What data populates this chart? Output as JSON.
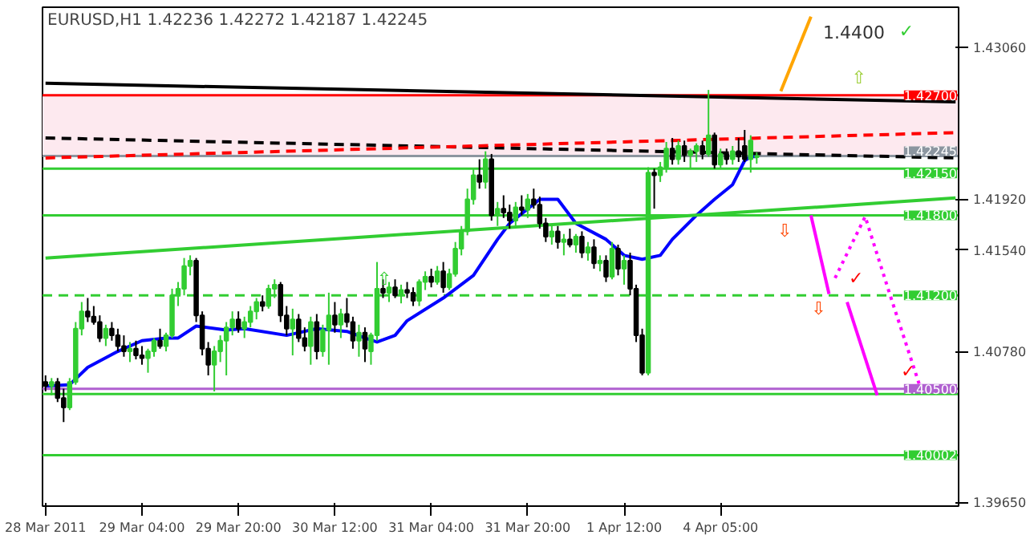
{
  "chart_data": {
    "type": "candlestick",
    "title": "EURUSD,H1  1.42236 1.42272 1.42187 1.42245",
    "categories": [
      "28 Mar 2011",
      null,
      null,
      null,
      null,
      null,
      null,
      null,
      null,
      null,
      null,
      null,
      null,
      null,
      null,
      null,
      "29 Mar 04:00",
      null,
      null,
      null,
      null,
      null,
      null,
      null,
      null,
      null,
      null,
      null,
      null,
      null,
      null,
      null,
      "29 Mar 20:00",
      null,
      null,
      null,
      null,
      null,
      null,
      null,
      null,
      null,
      null,
      null,
      null,
      null,
      null,
      null,
      "30 Mar 12:00",
      null,
      null,
      null,
      null,
      null,
      null,
      null,
      null,
      null,
      null,
      null,
      null,
      null,
      null,
      null,
      "31 Mar 04:00",
      null,
      null,
      null,
      null,
      null,
      null,
      null,
      null,
      null,
      null,
      null,
      null,
      null,
      null,
      null,
      "31 Mar 20:00",
      null,
      null,
      null,
      null,
      null,
      null,
      null,
      null,
      null,
      null,
      null,
      null,
      null,
      null,
      null,
      "1 Apr 12:00",
      null,
      null,
      null,
      null,
      null,
      null,
      null,
      null,
      null,
      null,
      null,
      null,
      null,
      null,
      null,
      "4 Apr 05:00",
      null,
      null,
      null,
      null,
      null,
      null,
      null,
      null,
      null,
      null,
      null,
      null,
      null,
      null,
      null,
      null,
      null,
      null,
      null,
      null,
      null,
      null,
      null,
      null,
      null,
      null,
      null,
      null,
      null,
      null,
      null,
      null,
      null,
      null,
      null,
      null,
      null,
      null,
      null
    ],
    "ohlc": [
      [
        1.4055,
        1.406,
        1.4048,
        1.4052
      ],
      [
        1.4052,
        1.4058,
        1.4045,
        1.4055
      ],
      [
        1.4055,
        1.4058,
        1.404,
        1.4043
      ],
      [
        1.4043,
        1.405,
        1.4025,
        1.4036
      ],
      [
        1.4036,
        1.4058,
        1.4034,
        1.4055
      ],
      [
        1.4055,
        1.41,
        1.4053,
        1.4095
      ],
      [
        1.4095,
        1.4115,
        1.409,
        1.4108
      ],
      [
        1.4108,
        1.4118,
        1.41,
        1.4104
      ],
      [
        1.4104,
        1.4112,
        1.4098,
        1.41
      ],
      [
        1.41,
        1.4105,
        1.4085,
        1.4088
      ],
      [
        1.4088,
        1.4098,
        1.4082,
        1.4095
      ],
      [
        1.4095,
        1.41,
        1.4086,
        1.409
      ],
      [
        1.409,
        1.4095,
        1.4078,
        1.4082
      ],
      [
        1.4082,
        1.409,
        1.4074,
        1.4078
      ],
      [
        1.4078,
        1.4085,
        1.407,
        1.408
      ],
      [
        1.408,
        1.4086,
        1.4072,
        1.4075
      ],
      [
        1.4075,
        1.4082,
        1.4068,
        1.4073
      ],
      [
        1.4073,
        1.408,
        1.4062,
        1.4078
      ],
      [
        1.4078,
        1.4088,
        1.4074,
        1.4086
      ],
      [
        1.4086,
        1.4095,
        1.408,
        1.4082
      ],
      [
        1.4082,
        1.4092,
        1.4078,
        1.409
      ],
      [
        1.409,
        1.4125,
        1.4088,
        1.412
      ],
      [
        1.412,
        1.413,
        1.4112,
        1.4125
      ],
      [
        1.4125,
        1.4148,
        1.412,
        1.4142
      ],
      [
        1.4142,
        1.415,
        1.4135,
        1.4146
      ],
      [
        1.4146,
        1.4148,
        1.41,
        1.4105
      ],
      [
        1.4105,
        1.4108,
        1.4075,
        1.408
      ],
      [
        1.408,
        1.4085,
        1.406,
        1.4068
      ],
      [
        1.4068,
        1.4082,
        1.4048,
        1.4078
      ],
      [
        1.4078,
        1.409,
        1.407,
        1.4086
      ],
      [
        1.4086,
        1.41,
        1.406,
        1.4096
      ],
      [
        1.4096,
        1.4108,
        1.409,
        1.4102
      ],
      [
        1.4102,
        1.4108,
        1.4092,
        1.4095
      ],
      [
        1.4095,
        1.4104,
        1.4088,
        1.41
      ],
      [
        1.41,
        1.4112,
        1.4096,
        1.4108
      ],
      [
        1.4108,
        1.4118,
        1.4102,
        1.4115
      ],
      [
        1.4115,
        1.412,
        1.4108,
        1.4112
      ],
      [
        1.4112,
        1.4128,
        1.411,
        1.4125
      ],
      [
        1.4125,
        1.4132,
        1.4118,
        1.4128
      ],
      [
        1.4128,
        1.413,
        1.41,
        1.4105
      ],
      [
        1.4105,
        1.4112,
        1.409,
        1.4095
      ],
      [
        1.4095,
        1.411,
        1.4075,
        1.4102
      ],
      [
        1.4102,
        1.4106,
        1.4085,
        1.4088
      ],
      [
        1.4088,
        1.4096,
        1.4078,
        1.4082
      ],
      [
        1.4082,
        1.4104,
        1.4068,
        1.41
      ],
      [
        1.41,
        1.4106,
        1.4072,
        1.4078
      ],
      [
        1.4078,
        1.4098,
        1.4074,
        1.4094
      ],
      [
        1.4094,
        1.4122,
        1.4068,
        1.4105
      ],
      [
        1.4105,
        1.4115,
        1.4092,
        1.4098
      ],
      [
        1.4098,
        1.411,
        1.4088,
        1.4106
      ],
      [
        1.4106,
        1.4118,
        1.4096,
        1.41
      ],
      [
        1.41,
        1.4104,
        1.408,
        1.4086
      ],
      [
        1.4086,
        1.4098,
        1.4074,
        1.4092
      ],
      [
        1.4092,
        1.4096,
        1.407,
        1.408
      ],
      [
        1.4078,
        1.4092,
        1.4068,
        1.409
      ],
      [
        1.409,
        1.4145,
        1.4086,
        1.4125
      ],
      [
        1.4125,
        1.4132,
        1.4118,
        1.4122
      ],
      [
        1.4122,
        1.413,
        1.4115,
        1.4126
      ],
      [
        1.4126,
        1.4132,
        1.4118,
        1.412
      ],
      [
        1.412,
        1.4128,
        1.4114,
        1.4124
      ],
      [
        1.4124,
        1.413,
        1.4118,
        1.4122
      ],
      [
        1.4122,
        1.4126,
        1.4112,
        1.4116
      ],
      [
        1.4116,
        1.4132,
        1.4112,
        1.413
      ],
      [
        1.413,
        1.4138,
        1.4124,
        1.4134
      ],
      [
        1.4134,
        1.414,
        1.4126,
        1.413
      ],
      [
        1.413,
        1.4142,
        1.4128,
        1.4138
      ],
      [
        1.4138,
        1.4145,
        1.4122,
        1.4126
      ],
      [
        1.4126,
        1.414,
        1.4124,
        1.4136
      ],
      [
        1.4136,
        1.416,
        1.4134,
        1.4155
      ],
      [
        1.4155,
        1.4172,
        1.415,
        1.4168
      ],
      [
        1.4168,
        1.42,
        1.4165,
        1.4192
      ],
      [
        1.4192,
        1.4215,
        1.4188,
        1.421
      ],
      [
        1.421,
        1.4222,
        1.42,
        1.4205
      ],
      [
        1.4205,
        1.4228,
        1.42,
        1.4222
      ],
      [
        1.4222,
        1.4226,
        1.4176,
        1.418
      ],
      [
        1.418,
        1.419,
        1.4172,
        1.4185
      ],
      [
        1.4185,
        1.4195,
        1.4178,
        1.4182
      ],
      [
        1.4182,
        1.4188,
        1.417,
        1.4176
      ],
      [
        1.4176,
        1.419,
        1.4172,
        1.4186
      ],
      [
        1.4186,
        1.4195,
        1.418,
        1.4184
      ],
      [
        1.4184,
        1.4196,
        1.4178,
        1.4192
      ],
      [
        1.4192,
        1.42,
        1.4185,
        1.4188
      ],
      [
        1.4188,
        1.4194,
        1.417,
        1.4174
      ],
      [
        1.4174,
        1.4178,
        1.416,
        1.4164
      ],
      [
        1.4164,
        1.4172,
        1.4158,
        1.4168
      ],
      [
        1.4168,
        1.4172,
        1.4155,
        1.416
      ],
      [
        1.416,
        1.4166,
        1.415,
        1.4162
      ],
      [
        1.4162,
        1.417,
        1.4156,
        1.4158
      ],
      [
        1.4158,
        1.4166,
        1.4152,
        1.4164
      ],
      [
        1.4164,
        1.4168,
        1.4148,
        1.4152
      ],
      [
        1.4152,
        1.416,
        1.4146,
        1.4156
      ],
      [
        1.4156,
        1.4162,
        1.414,
        1.4144
      ],
      [
        1.4144,
        1.415,
        1.4138,
        1.4146
      ],
      [
        1.4146,
        1.415,
        1.413,
        1.4134
      ],
      [
        1.4134,
        1.416,
        1.4132,
        1.4155
      ],
      [
        1.4155,
        1.4158,
        1.4135,
        1.414
      ],
      [
        1.414,
        1.415,
        1.4128,
        1.4146
      ],
      [
        1.4146,
        1.4152,
        1.412,
        1.4125
      ],
      [
        1.4125,
        1.4128,
        1.4085,
        1.409
      ],
      [
        1.409,
        1.4095,
        1.406,
        1.4062
      ],
      [
        1.4062,
        1.4216,
        1.406,
        1.4212
      ],
      [
        1.4212,
        1.4215,
        1.4185,
        1.421
      ],
      [
        1.421,
        1.422,
        1.4205,
        1.4216
      ],
      [
        1.4216,
        1.4235,
        1.4212,
        1.423
      ],
      [
        1.423,
        1.4238,
        1.4218,
        1.4222
      ],
      [
        1.4222,
        1.4236,
        1.4218,
        1.4232
      ],
      [
        1.4232,
        1.4236,
        1.422,
        1.4225
      ],
      [
        1.4225,
        1.423,
        1.4215,
        1.4228
      ],
      [
        1.4228,
        1.4234,
        1.422,
        1.4232
      ],
      [
        1.4232,
        1.4236,
        1.4222,
        1.4226
      ],
      [
        1.4226,
        1.4274,
        1.4224,
        1.424
      ],
      [
        1.424,
        1.4242,
        1.4215,
        1.4218
      ],
      [
        1.4218,
        1.423,
        1.4215,
        1.4226
      ],
      [
        1.4226,
        1.423,
        1.4218,
        1.4222
      ],
      [
        1.4222,
        1.4232,
        1.4218,
        1.4228
      ],
      [
        1.4228,
        1.4238,
        1.422,
        1.4224
      ],
      [
        1.4232,
        1.4244,
        1.422,
        1.4222
      ],
      [
        1.4222,
        1.424,
        1.4212,
        1.4236
      ],
      [
        1.42236,
        1.42272,
        1.42187,
        1.42245
      ],
      null,
      null,
      null,
      null,
      null,
      null,
      null,
      null,
      null,
      null,
      null,
      null,
      null,
      null,
      null,
      null,
      null,
      null,
      null,
      null,
      null,
      null,
      null,
      null,
      null,
      null,
      null,
      null,
      null,
      null,
      null,
      null,
      null
    ],
    "series": [
      {
        "type": "line",
        "color": "#0000ff",
        "values": [
          1.4052,
          null,
          null,
          null,
          1.4053,
          null,
          null,
          1.4066,
          null,
          null,
          null,
          null,
          1.4078,
          null,
          null,
          null,
          1.4086,
          null,
          null,
          null,
          1.4088,
          null,
          1.4088,
          null,
          null,
          1.4097,
          null,
          null,
          null,
          null,
          1.4094,
          null,
          null,
          1.4095,
          null,
          null,
          null,
          null,
          null,
          null,
          1.409,
          null,
          null,
          null,
          null,
          1.4095,
          null,
          null,
          null,
          null,
          1.4093,
          null,
          null,
          1.4088,
          null,
          1.4085,
          null,
          null,
          1.409,
          null,
          1.4101,
          null,
          null,
          null,
          null,
          null,
          1.4118,
          null,
          null,
          null,
          null,
          1.4135,
          null,
          null,
          null,
          1.4162,
          null,
          1.4174,
          null,
          null,
          null,
          null,
          1.4192,
          null,
          null,
          1.4192,
          null,
          null,
          1.4174,
          null,
          null,
          null,
          null,
          1.4162,
          null,
          null,
          1.415,
          null,
          null,
          1.4147,
          null,
          null,
          1.415,
          null,
          1.4162,
          null,
          null,
          null,
          1.418,
          null,
          null,
          1.4192,
          null,
          null,
          1.4203,
          null,
          1.4221,
          1.4224,
          1.4224,
          null,
          null,
          null,
          null,
          null,
          null,
          null,
          null,
          null,
          null,
          null,
          null,
          null,
          null,
          null,
          null,
          null,
          null,
          null,
          null,
          null,
          null,
          null,
          null,
          null,
          null,
          null,
          null,
          null,
          null,
          null,
          null,
          null
        ]
      },
      {
        "type": "line",
        "color": "#000000",
        "values": [
          1.4279,
          null,
          null,
          null,
          null,
          null,
          null,
          null,
          null,
          null,
          null,
          null,
          null,
          null,
          null,
          null,
          null,
          null,
          null,
          null,
          null,
          null,
          null,
          null,
          null,
          null,
          null,
          null,
          null,
          null,
          null,
          null,
          null,
          null,
          null,
          null,
          null,
          null,
          null,
          null,
          null,
          null,
          null,
          null,
          null,
          null,
          null,
          null,
          null,
          null,
          null,
          null,
          null,
          null,
          null,
          null,
          null,
          null,
          null,
          null,
          null,
          null,
          null,
          null,
          null,
          null,
          null,
          null,
          null,
          null,
          null,
          null,
          null,
          null,
          null,
          null,
          null,
          null,
          null,
          null,
          null,
          null,
          null,
          null,
          null,
          null,
          null,
          null,
          null,
          null,
          null,
          null,
          null,
          null,
          null,
          null,
          null,
          null,
          null,
          null,
          null,
          null,
          null,
          null,
          null,
          null,
          null,
          null,
          null,
          null,
          null,
          null,
          null,
          null,
          null,
          null,
          null,
          null,
          null,
          null,
          null,
          null,
          null,
          null,
          null,
          null,
          null,
          null,
          null,
          null,
          null,
          null,
          null,
          null,
          null,
          null,
          null,
          null,
          null,
          null,
          null,
          null,
          null,
          null,
          null,
          null,
          null,
          null,
          null,
          null,
          null,
          1.4265
        ]
      },
      {
        "type": "line",
        "color": "#000000",
        "line_style": "dashed",
        "values": [
          1.4238,
          null,
          null,
          null,
          null,
          null,
          null,
          null,
          null,
          null,
          null,
          null,
          null,
          null,
          null,
          null,
          null,
          null,
          null,
          null,
          null,
          null,
          null,
          null,
          null,
          null,
          null,
          null,
          null,
          null,
          null,
          null,
          null,
          null,
          null,
          null,
          null,
          null,
          null,
          null,
          null,
          null,
          null,
          null,
          null,
          null,
          null,
          null,
          null,
          null,
          null,
          null,
          null,
          null,
          null,
          null,
          null,
          null,
          null,
          null,
          null,
          null,
          null,
          null,
          null,
          null,
          null,
          null,
          null,
          null,
          null,
          null,
          null,
          null,
          null,
          null,
          null,
          null,
          null,
          null,
          null,
          null,
          null,
          null,
          null,
          null,
          null,
          null,
          null,
          null,
          null,
          null,
          null,
          null,
          null,
          null,
          null,
          null,
          null,
          null,
          null,
          null,
          null,
          null,
          null,
          null,
          null,
          null,
          null,
          null,
          null,
          null,
          null,
          null,
          null,
          null,
          null,
          null,
          null,
          null,
          null,
          null,
          null,
          null,
          null,
          null,
          null,
          null,
          null,
          null,
          null,
          null,
          null,
          null,
          null,
          null,
          null,
          null,
          null,
          null,
          null,
          null,
          null,
          null,
          null,
          null,
          null,
          null,
          null,
          null,
          null,
          1.4223
        ]
      },
      {
        "type": "line",
        "color": "#ff0000",
        "line_style": "dashed",
        "values": [
          1.4223,
          null,
          null,
          null,
          null,
          null,
          null,
          null,
          null,
          null,
          null,
          null,
          null,
          null,
          null,
          null,
          null,
          null,
          null,
          null,
          null,
          null,
          null,
          null,
          null,
          null,
          null,
          null,
          null,
          null,
          null,
          null,
          null,
          null,
          null,
          null,
          null,
          null,
          null,
          null,
          null,
          null,
          null,
          null,
          null,
          null,
          null,
          null,
          null,
          null,
          null,
          null,
          null,
          null,
          null,
          null,
          null,
          null,
          null,
          null,
          null,
          null,
          null,
          null,
          null,
          null,
          null,
          null,
          null,
          null,
          null,
          null,
          null,
          null,
          null,
          null,
          null,
          null,
          null,
          null,
          null,
          null,
          null,
          null,
          null,
          null,
          null,
          null,
          null,
          null,
          null,
          null,
          null,
          null,
          null,
          null,
          null,
          null,
          null,
          null,
          null,
          null,
          null,
          null,
          null,
          null,
          null,
          null,
          null,
          null,
          null,
          null,
          null,
          null,
          null,
          null,
          null,
          null,
          null,
          null,
          null,
          null,
          null,
          null,
          null,
          null,
          null,
          null,
          null,
          null,
          null,
          null,
          null,
          null,
          null,
          null,
          null,
          null,
          null,
          null,
          null,
          null,
          null,
          null,
          null,
          null,
          null,
          null,
          null,
          null,
          null,
          1.4242
        ]
      },
      {
        "type": "line",
        "color": "#32cd32",
        "values": [
          1.4148,
          null,
          null,
          null,
          null,
          null,
          null,
          null,
          null,
          null,
          null,
          null,
          null,
          null,
          null,
          null,
          null,
          null,
          null,
          null,
          null,
          null,
          null,
          null,
          null,
          null,
          null,
          null,
          null,
          null,
          null,
          null,
          null,
          null,
          null,
          null,
          null,
          null,
          null,
          null,
          null,
          null,
          null,
          null,
          null,
          null,
          null,
          null,
          null,
          null,
          null,
          null,
          null,
          null,
          null,
          null,
          null,
          null,
          null,
          null,
          null,
          null,
          null,
          null,
          null,
          null,
          null,
          null,
          null,
          null,
          null,
          null,
          null,
          null,
          null,
          null,
          null,
          null,
          null,
          null,
          null,
          null,
          null,
          null,
          null,
          null,
          null,
          null,
          null,
          null,
          null,
          null,
          null,
          null,
          null,
          null,
          null,
          null,
          null,
          null,
          null,
          null,
          null,
          null,
          null,
          null,
          null,
          null,
          null,
          null,
          null,
          null,
          null,
          null,
          null,
          null,
          null,
          null,
          null,
          null,
          null,
          null,
          null,
          null,
          null,
          null,
          null,
          null,
          null,
          null,
          null,
          null,
          null,
          null,
          null,
          null,
          null,
          null,
          null,
          null,
          null,
          null,
          null,
          null,
          null,
          null,
          null,
          null,
          null,
          null,
          null,
          1.4193
        ]
      },
      {
        "type": "line",
        "color": "#ff00ff",
        "values": [
          null,
          null,
          null,
          null,
          null,
          null,
          null,
          null,
          null,
          null,
          null,
          null,
          null,
          null,
          null,
          null,
          null,
          null,
          null,
          null,
          null,
          null,
          null,
          null,
          null,
          null,
          null,
          null,
          null,
          null,
          null,
          null,
          null,
          null,
          null,
          null,
          null,
          null,
          null,
          null,
          null,
          null,
          null,
          null,
          null,
          null,
          null,
          null,
          null,
          null,
          null,
          null,
          null,
          null,
          null,
          null,
          null,
          null,
          null,
          null,
          null,
          null,
          null,
          null,
          null,
          null,
          null,
          null,
          null,
          null,
          null,
          null,
          null,
          null,
          null,
          null,
          null,
          null,
          null,
          null,
          null,
          null,
          null,
          null,
          null,
          null,
          null,
          null,
          null,
          null,
          null,
          null,
          null,
          null,
          null,
          null,
          null,
          null,
          null,
          null,
          null,
          null,
          null,
          null,
          null,
          null,
          null,
          null,
          null,
          null,
          null,
          null,
          null,
          null,
          null,
          null,
          null,
          null,
          null,
          null,
          null,
          null,
          null,
          null,
          null,
          null,
          null,
          1.418,
          null,
          null,
          1.4121,
          null,
          null,
          null,
          null,
          null,
          null,
          null,
          null,
          null,
          null,
          null,
          null,
          null,
          null,
          null,
          null,
          null,
          null,
          null,
          null,
          null
        ]
      },
      {
        "type": "line",
        "color": "#ff00ff",
        "values": [
          null,
          null,
          null,
          null,
          null,
          null,
          null,
          null,
          null,
          null,
          null,
          null,
          null,
          null,
          null,
          null,
          null,
          null,
          null,
          null,
          null,
          null,
          null,
          null,
          null,
          null,
          null,
          null,
          null,
          null,
          null,
          null,
          null,
          null,
          null,
          null,
          null,
          null,
          null,
          null,
          null,
          null,
          null,
          null,
          null,
          null,
          null,
          null,
          null,
          null,
          null,
          null,
          null,
          null,
          null,
          null,
          null,
          null,
          null,
          null,
          null,
          null,
          null,
          null,
          null,
          null,
          null,
          null,
          null,
          null,
          null,
          null,
          null,
          null,
          null,
          null,
          null,
          null,
          null,
          null,
          null,
          null,
          null,
          null,
          null,
          null,
          null,
          null,
          null,
          null,
          null,
          null,
          null,
          null,
          null,
          null,
          null,
          null,
          null,
          null,
          null,
          null,
          null,
          null,
          null,
          null,
          null,
          null,
          null,
          null,
          null,
          null,
          null,
          null,
          null,
          null,
          null,
          null,
          null,
          null,
          null,
          null,
          null,
          null,
          null,
          null,
          null,
          null,
          null,
          null,
          null,
          null,
          null,
          1.4115,
          null,
          null,
          null,
          null,
          1.4045,
          null,
          null,
          null,
          null,
          null,
          null,
          null,
          null,
          null,
          null,
          null,
          null,
          null
        ]
      },
      {
        "type": "line",
        "color": "#ff00ff",
        "line_style": "dotted",
        "values": [
          null,
          null,
          null,
          null,
          null,
          null,
          null,
          null,
          null,
          null,
          null,
          null,
          null,
          null,
          null,
          null,
          null,
          null,
          null,
          null,
          null,
          null,
          null,
          null,
          null,
          null,
          null,
          null,
          null,
          null,
          null,
          null,
          null,
          null,
          null,
          null,
          null,
          null,
          null,
          null,
          null,
          null,
          null,
          null,
          null,
          null,
          null,
          null,
          null,
          null,
          null,
          null,
          null,
          null,
          null,
          null,
          null,
          null,
          null,
          null,
          null,
          null,
          null,
          null,
          null,
          null,
          null,
          null,
          null,
          null,
          null,
          null,
          null,
          null,
          null,
          null,
          null,
          null,
          null,
          null,
          null,
          null,
          null,
          null,
          null,
          null,
          null,
          null,
          null,
          null,
          null,
          null,
          null,
          null,
          null,
          null,
          null,
          null,
          null,
          null,
          null,
          null,
          null,
          null,
          null,
          null,
          null,
          null,
          null,
          null,
          null,
          null,
          null,
          null,
          null,
          null,
          null,
          null,
          null,
          null,
          null,
          null,
          null,
          null,
          null,
          null,
          null,
          null,
          null,
          null,
          null,
          1.4133,
          null,
          null,
          null,
          null,
          1.4179,
          null,
          null,
          null,
          1.4122,
          null,
          null,
          null,
          null,
          1.4053,
          null,
          null,
          null,
          null,
          null,
          null
        ]
      },
      {
        "type": "line",
        "color": "#ffa500",
        "values": [
          null,
          null,
          null,
          null,
          null,
          null,
          null,
          null,
          null,
          null,
          null,
          null,
          null,
          null,
          null,
          null,
          null,
          null,
          null,
          null,
          null,
          null,
          null,
          null,
          null,
          null,
          null,
          null,
          null,
          null,
          null,
          null,
          null,
          null,
          null,
          null,
          null,
          null,
          null,
          null,
          null,
          null,
          null,
          null,
          null,
          null,
          null,
          null,
          null,
          null,
          null,
          null,
          null,
          null,
          null,
          null,
          null,
          null,
          null,
          null,
          null,
          null,
          null,
          null,
          null,
          null,
          null,
          null,
          null,
          null,
          null,
          null,
          null,
          null,
          null,
          null,
          null,
          null,
          null,
          null,
          null,
          null,
          null,
          null,
          null,
          null,
          null,
          null,
          null,
          null,
          null,
          null,
          null,
          null,
          null,
          null,
          null,
          null,
          null,
          null,
          null,
          null,
          null,
          null,
          null,
          null,
          null,
          null,
          null,
          null,
          null,
          null,
          null,
          null,
          null,
          null,
          null,
          null,
          null,
          null,
          null,
          null,
          1.4273,
          null,
          null,
          null,
          null,
          1.4329,
          null,
          null,
          null,
          null,
          null,
          null,
          null,
          null,
          null,
          null,
          null,
          null,
          null,
          null,
          null,
          null,
          null,
          null,
          null,
          null,
          null,
          null,
          null,
          null
        ]
      }
    ],
    "ref_lines": [
      {
        "axis": "y",
        "value": 1.427,
        "label": "1.42700",
        "color": "#ff0000"
      },
      {
        "axis": "y",
        "value": 1.42245,
        "label": "1.42245",
        "color": "#8c96a0"
      },
      {
        "axis": "y",
        "value": 1.4215,
        "label": "1.42150",
        "color": "#32cd32"
      },
      {
        "axis": "y",
        "value": 1.418,
        "label": "1.41800",
        "color": "#32cd32"
      },
      {
        "axis": "y",
        "value": 1.412,
        "label": "1.41200",
        "color": "#32cd32",
        "line_style": "dashed"
      },
      {
        "axis": "y",
        "value": 1.4046,
        "color": "#32cd32"
      },
      {
        "axis": "y",
        "value": 1.405,
        "label": "1.40500",
        "color": "#b060d0"
      },
      {
        "axis": "y",
        "value": 1.40002,
        "label": "1.40002",
        "color": "#32cd32"
      }
    ],
    "bands": [
      {
        "axis": "y",
        "from": 1.4224,
        "to": 1.427,
        "color": "#fde9ef"
      }
    ],
    "annotations": [
      "1.4400",
      "✓",
      "⇧",
      "⇩",
      "⇩",
      "✓",
      "✓",
      "⇧"
    ],
    "ylim": [
      1.3962,
      1.4336
    ],
    "yticks": [
      {
        "value": 1.4306,
        "label": "1.43060"
      },
      {
        "value": 1.4192,
        "label": "1.41920"
      },
      {
        "value": 1.4154,
        "label": "1.41540"
      },
      {
        "value": 1.4078,
        "label": "1.40780"
      },
      {
        "value": 1.3965,
        "label": "1.39650"
      }
    ],
    "grid": false
  }
}
